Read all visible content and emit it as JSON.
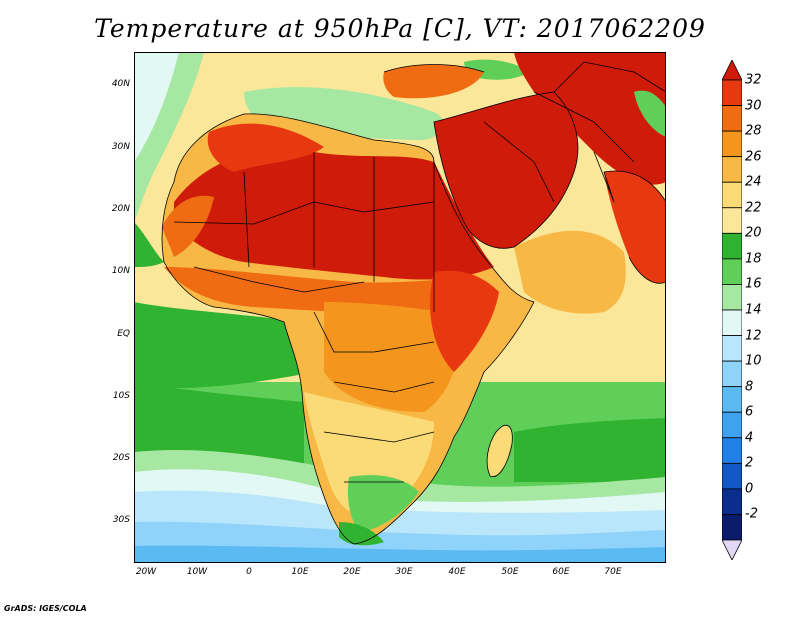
{
  "title": "Temperature at 950hPa [C], VT: 2017062209",
  "credit": "GrADS: IGES/COLA",
  "map": {
    "lon_range": [
      -23,
      79
    ],
    "lat_range": [
      -36,
      46
    ],
    "lat_ticks": [
      "40N",
      "30N",
      "20N",
      "10N",
      "EQ",
      "10S",
      "20S",
      "30S"
    ],
    "lon_ticks": [
      "20W",
      "10W",
      "0",
      "10E",
      "20E",
      "30E",
      "40E",
      "50E",
      "60E",
      "70E"
    ],
    "ocean_color": "#fbe79a",
    "boundary_color": "#000000"
  },
  "colorbar": {
    "labels": [
      "32",
      "30",
      "28",
      "26",
      "24",
      "22",
      "20",
      "18",
      "16",
      "14",
      "12",
      "10",
      "8",
      "6",
      "4",
      "2",
      "0",
      "-2"
    ],
    "colors": [
      "#cf1b0a",
      "#e8380f",
      "#ef6c12",
      "#f4961e",
      "#f8b845",
      "#fadb77",
      "#fbe79a",
      "#2fb331",
      "#5fcf5a",
      "#a6e8a2",
      "#e2f8f4",
      "#b9e6fb",
      "#8fd3fa",
      "#5cbaf2",
      "#3fa2ee",
      "#2180e6",
      "#1259c6",
      "#0b2e8e",
      "#0a1c6a",
      "#e3d9f6"
    ]
  }
}
